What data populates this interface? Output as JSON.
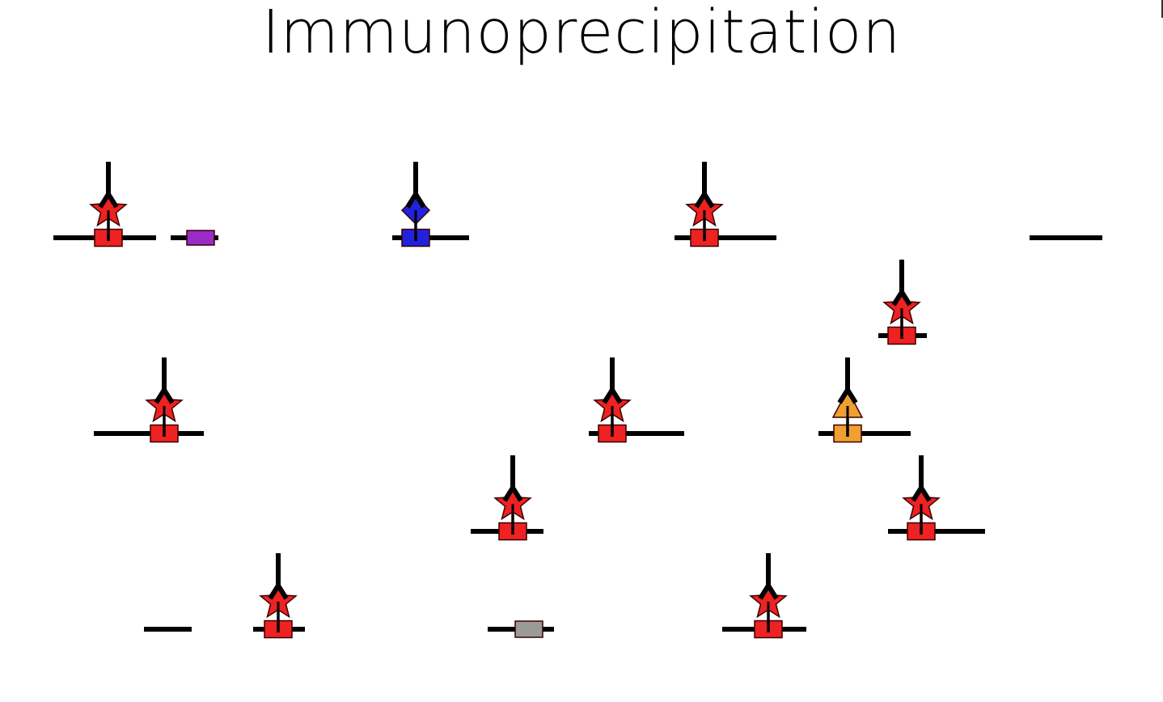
{
  "title": "Immunoprecipitation",
  "colors": {
    "dna": "#000000",
    "antibody": "#000000",
    "target_protein": "#ee2222",
    "star_tag": "#ee2222",
    "protein_blue": "#2222dd",
    "protein_purple": "#9a2bc8",
    "protein_orange": "#f0a030",
    "protein_gray": "#9a9a9a",
    "outline": "#3a0000"
  },
  "icons": {
    "antibody": "y-shaped-antibody-icon",
    "tag_star": "star-icon",
    "tag_diamond": "diamond-icon",
    "tag_triangle": "triangle-icon",
    "protein": "rectangle-protein-icon",
    "dna": "dna-strand-line"
  },
  "fragments": [
    {
      "protein": "red",
      "antibody": true,
      "tag": "star"
    },
    {
      "protein": "purple",
      "antibody": false,
      "tag": null
    },
    {
      "protein": "blue",
      "antibody": true,
      "tag": "diamond"
    },
    {
      "protein": "red",
      "antibody": true,
      "tag": "star"
    },
    {
      "protein": null,
      "antibody": false,
      "tag": null
    },
    {
      "protein": "red",
      "antibody": true,
      "tag": "star"
    },
    {
      "protein": "red",
      "antibody": true,
      "tag": "star"
    },
    {
      "protein": "red",
      "antibody": true,
      "tag": "star"
    },
    {
      "protein": "orange",
      "antibody": true,
      "tag": "triangle"
    },
    {
      "protein": "red",
      "antibody": true,
      "tag": "star"
    },
    {
      "protein": "red",
      "antibody": true,
      "tag": "star"
    },
    {
      "protein": null,
      "antibody": false,
      "tag": null
    },
    {
      "protein": "red",
      "antibody": true,
      "tag": "star"
    },
    {
      "protein": "gray",
      "antibody": false,
      "tag": null
    },
    {
      "protein": "red",
      "antibody": true,
      "tag": "star"
    }
  ]
}
